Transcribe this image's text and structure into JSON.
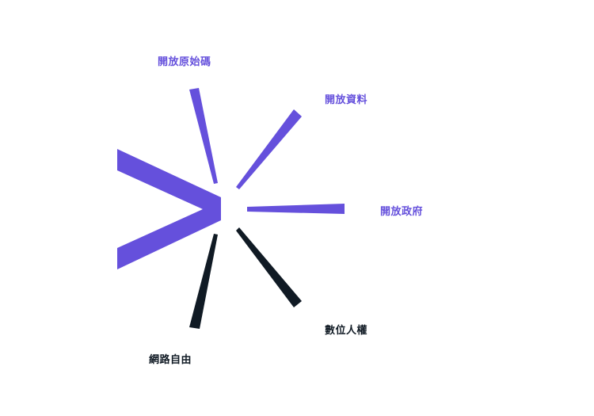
{
  "colors": {
    "accent": "#6550dc",
    "dark": "#101a24",
    "background": "#ffffff"
  },
  "labels": {
    "open_source": "開放原始碼",
    "open_data": "開放資料",
    "open_gov": "開放政府",
    "digital_rights": "數位人權",
    "internet_freedom": "網路自由"
  }
}
